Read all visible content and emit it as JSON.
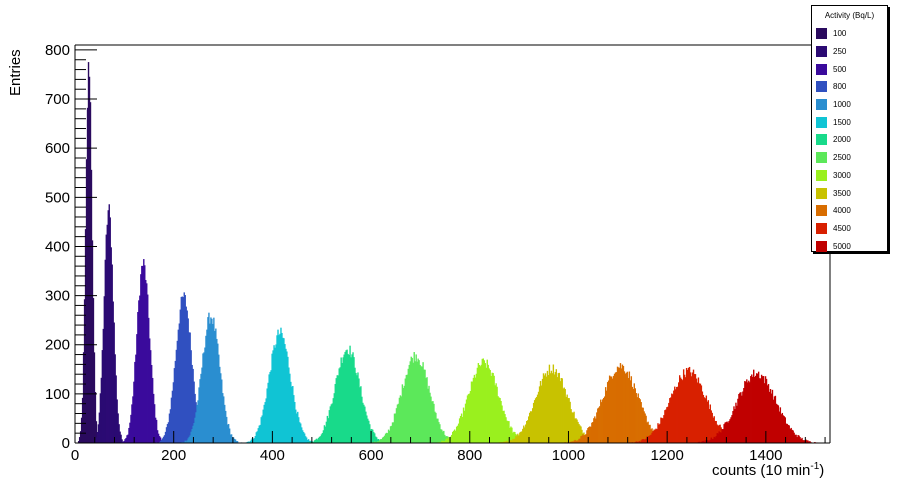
{
  "chart_data": {
    "type": "histogram",
    "xlabel": "counts (10 min",
    "xlabel_superscript": "-1",
    "xlabel_suffix": ")",
    "ylabel": "Entries",
    "xlim": [
      0,
      1530
    ],
    "ylim": [
      0,
      810
    ],
    "x_ticks": [
      0,
      200,
      400,
      600,
      800,
      1000,
      1200,
      1400
    ],
    "y_ticks": [
      0,
      100,
      200,
      300,
      400,
      500,
      600,
      700,
      800
    ],
    "x_tick_labels": [
      "0",
      "200",
      "400",
      "600",
      "800",
      "1000",
      "1200",
      "1400"
    ],
    "y_tick_labels": [
      "0",
      "100",
      "200",
      "300",
      "400",
      "500",
      "600",
      "700",
      "800"
    ],
    "grid": false,
    "legend_title": "Activity (Bq/L)",
    "legend_position": "top-right",
    "series": [
      {
        "name": "100",
        "color": "#2a0a5e",
        "mean": 28,
        "peak": 770
      },
      {
        "name": "250",
        "color": "#2b0a73",
        "mean": 68,
        "peak": 475
      },
      {
        "name": "500",
        "color": "#3a0a9c",
        "mean": 138,
        "peak": 365
      },
      {
        "name": "800",
        "color": "#3050c0",
        "mean": 220,
        "peak": 297
      },
      {
        "name": "1000",
        "color": "#2a8ed0",
        "mean": 275,
        "peak": 258
      },
      {
        "name": "1500",
        "color": "#10c4d4",
        "mean": 415,
        "peak": 223
      },
      {
        "name": "2000",
        "color": "#18da8a",
        "mean": 552,
        "peak": 192
      },
      {
        "name": "2500",
        "color": "#5ce85a",
        "mean": 690,
        "peak": 178
      },
      {
        "name": "3000",
        "color": "#9af01e",
        "mean": 828,
        "peak": 163
      },
      {
        "name": "3500",
        "color": "#c8c200",
        "mean": 966,
        "peak": 152
      },
      {
        "name": "4000",
        "color": "#d86d00",
        "mean": 1105,
        "peak": 157
      },
      {
        "name": "4500",
        "color": "#d82000",
        "mean": 1243,
        "peak": 146
      },
      {
        "name": "5000",
        "color": "#c00000",
        "mean": 1381,
        "peak": 142
      }
    ]
  }
}
